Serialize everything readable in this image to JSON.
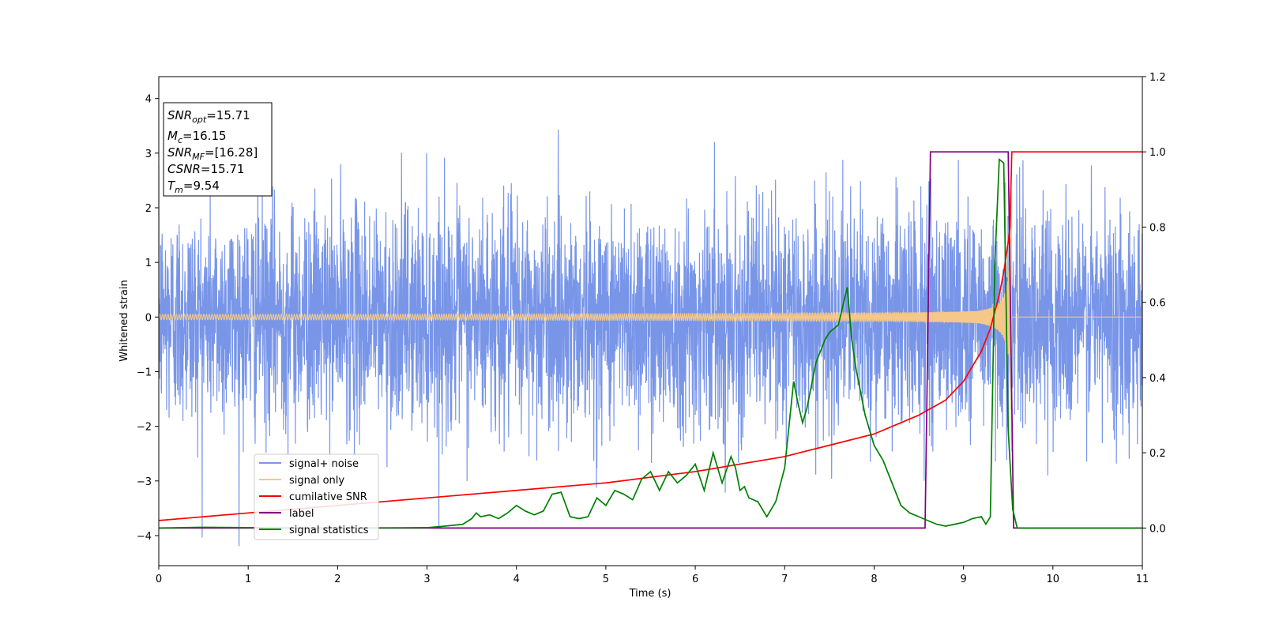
{
  "chart_data": {
    "type": "line",
    "xlabel": "Time (s)",
    "ylabel": "Whitened strain",
    "xlim": [
      0,
      11
    ],
    "ylim_left": [
      -4.55,
      4.4
    ],
    "ylim_right": [
      -0.1,
      1.2
    ],
    "x_ticks": [
      "0",
      "1",
      "2",
      "3",
      "4",
      "5",
      "6",
      "7",
      "8",
      "9",
      "10",
      "11"
    ],
    "y_left_ticks": [
      "4",
      "3",
      "2",
      "1",
      "0",
      "−1",
      "−2",
      "−3",
      "−4"
    ],
    "y_right_ticks": [
      "1.2",
      "1.0",
      "0.8",
      "0.6",
      "0.4",
      "0.2",
      "0.0"
    ],
    "grid": false,
    "legend_position": "lower-left",
    "info_box": {
      "snr_opt": {
        "sym": "SNR",
        "sub": "opt",
        "val": "=15.71"
      },
      "mc": {
        "sym": "M",
        "sub": "c",
        "val": "=16.15"
      },
      "snr_mf": {
        "sym": "SNR",
        "sub": "MF",
        "val": "=[16.28]"
      },
      "csnr": {
        "sym": "CSNR",
        "sub": "",
        "val": "=15.71"
      },
      "tm": {
        "sym": "T",
        "sub": "m",
        "val": "=9.54"
      }
    },
    "series": [
      {
        "name": "signal+ noise",
        "axis": "left",
        "color": "#7895e8",
        "noise_sigma": 1.0,
        "y_extent": [
          -4.2,
          4.0
        ]
      },
      {
        "name": "signal only",
        "axis": "left",
        "color": "#f5c889",
        "merger_time": 9.54,
        "peak_amplitude": 1.0
      },
      {
        "name": "cumilative SNR",
        "axis": "right",
        "color": "#ff0000",
        "x": [
          0,
          1,
          2,
          3,
          4,
          5,
          6,
          7,
          7.5,
          8,
          8.5,
          8.8,
          9.0,
          9.2,
          9.3,
          9.4,
          9.45,
          9.5,
          9.52,
          9.54,
          11
        ],
        "y": [
          0.02,
          0.04,
          0.06,
          0.08,
          0.1,
          0.12,
          0.15,
          0.19,
          0.22,
          0.25,
          0.3,
          0.34,
          0.39,
          0.47,
          0.53,
          0.62,
          0.68,
          0.76,
          0.8,
          1.0,
          1.0
        ]
      },
      {
        "name": "label",
        "axis": "right",
        "color": "#800080",
        "x": [
          0,
          8.57,
          8.63,
          9.5,
          9.56,
          11
        ],
        "y": [
          0.0,
          0.0,
          1.0,
          1.0,
          0.0,
          0.0
        ]
      },
      {
        "name": "signal statistics",
        "axis": "right",
        "color": "#008000",
        "x": [
          0,
          0.5,
          1,
          2,
          3,
          3.2,
          3.4,
          3.5,
          3.55,
          3.6,
          3.7,
          3.8,
          3.9,
          4.0,
          4.1,
          4.2,
          4.3,
          4.4,
          4.5,
          4.6,
          4.7,
          4.8,
          4.9,
          5.0,
          5.1,
          5.2,
          5.3,
          5.4,
          5.5,
          5.6,
          5.7,
          5.8,
          5.9,
          6.0,
          6.1,
          6.2,
          6.25,
          6.3,
          6.4,
          6.45,
          6.5,
          6.55,
          6.6,
          6.7,
          6.8,
          6.9,
          7.0,
          7.1,
          7.15,
          7.2,
          7.25,
          7.3,
          7.35,
          7.4,
          7.45,
          7.5,
          7.6,
          7.7,
          7.75,
          7.8,
          7.85,
          7.9,
          8.0,
          8.1,
          8.2,
          8.3,
          8.4,
          8.5,
          8.6,
          8.7,
          8.8,
          8.9,
          9.0,
          9.1,
          9.2,
          9.25,
          9.3,
          9.35,
          9.4,
          9.45,
          9.5,
          9.55,
          9.6,
          10,
          11
        ],
        "y": [
          0.0,
          0.002,
          0.001,
          0.0,
          0.001,
          0.005,
          0.01,
          0.025,
          0.04,
          0.03,
          0.035,
          0.025,
          0.04,
          0.06,
          0.045,
          0.035,
          0.045,
          0.09,
          0.095,
          0.03,
          0.025,
          0.03,
          0.08,
          0.06,
          0.1,
          0.09,
          0.075,
          0.13,
          0.15,
          0.1,
          0.15,
          0.12,
          0.14,
          0.17,
          0.1,
          0.2,
          0.16,
          0.12,
          0.19,
          0.16,
          0.1,
          0.11,
          0.08,
          0.07,
          0.03,
          0.07,
          0.16,
          0.39,
          0.33,
          0.28,
          0.32,
          0.38,
          0.44,
          0.47,
          0.5,
          0.52,
          0.54,
          0.64,
          0.5,
          0.42,
          0.36,
          0.3,
          0.22,
          0.18,
          0.12,
          0.06,
          0.04,
          0.03,
          0.02,
          0.01,
          0.005,
          0.01,
          0.015,
          0.025,
          0.03,
          0.01,
          0.03,
          0.7,
          0.98,
          0.97,
          0.26,
          0.05,
          0.0,
          0.0,
          0.0
        ]
      }
    ]
  }
}
